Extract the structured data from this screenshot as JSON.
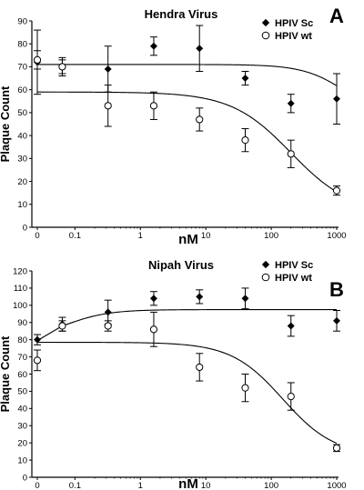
{
  "chart_data": [
    {
      "type": "scatter",
      "panel_label": "A",
      "title": "Hendra Virus",
      "xlabel": "nM",
      "ylabel": "Plaque Count",
      "x_scale": "log",
      "x_ticks": [
        0,
        0.1,
        1,
        10,
        100,
        1000
      ],
      "x_tick_labels": [
        "0",
        "0.1",
        "1",
        "10",
        "100",
        "1000"
      ],
      "ylim": [
        0,
        90
      ],
      "y_ticks": [
        0,
        10,
        20,
        30,
        40,
        50,
        60,
        70,
        80,
        90
      ],
      "legend_position": "top-right",
      "x": [
        0,
        0.064,
        0.32,
        1.6,
        8,
        40,
        200,
        1000
      ],
      "series": [
        {
          "name": "HPIV Sc",
          "marker": "filled-diamond",
          "values": [
            72,
            70,
            69,
            79,
            78,
            65,
            54,
            56
          ],
          "errors": [
            14,
            4,
            10,
            4,
            10,
            3,
            4,
            11
          ],
          "fit": "flat with decline near 1000 nM"
        },
        {
          "name": "HPIV wt",
          "marker": "open-circle",
          "values": [
            73,
            70,
            53,
            53,
            47,
            38,
            32,
            16
          ],
          "errors": [
            4,
            3,
            9,
            6,
            5,
            5,
            6,
            2
          ],
          "fit": "sigmoidal decline"
        }
      ]
    },
    {
      "type": "scatter",
      "panel_label": "B",
      "title": "Nipah Virus",
      "xlabel": "nM",
      "ylabel": "Plaque Count",
      "x_scale": "log",
      "x_ticks": [
        0,
        0.1,
        1,
        10,
        100,
        1000
      ],
      "x_tick_labels": [
        "0",
        "0.1",
        "1",
        "10",
        "100",
        "1000"
      ],
      "ylim": [
        0,
        120
      ],
      "y_ticks": [
        0,
        10,
        20,
        30,
        40,
        50,
        60,
        70,
        80,
        90,
        100,
        110,
        120
      ],
      "legend_position": "top-right",
      "x": [
        0,
        0.064,
        0.32,
        1.6,
        8,
        40,
        200,
        1000
      ],
      "series": [
        {
          "name": "HPIV Sc",
          "marker": "filled-diamond",
          "values": [
            80,
            89,
            96,
            104,
            105,
            104,
            88,
            91
          ],
          "errors": [
            3,
            4,
            7,
            4,
            4,
            6,
            6,
            6
          ],
          "fit": "rise then plateau"
        },
        {
          "name": "HPIV wt",
          "marker": "open-circle",
          "values": [
            68,
            88,
            88,
            86,
            64,
            52,
            47,
            17
          ],
          "errors": [
            6,
            3,
            3,
            10,
            8,
            8,
            8,
            2
          ],
          "fit": "sigmoidal decline"
        }
      ]
    }
  ]
}
